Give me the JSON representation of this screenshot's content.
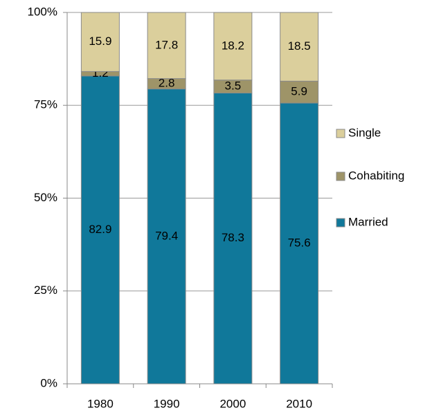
{
  "chart_data": {
    "type": "stacked_bar",
    "categories": [
      "1980",
      "1990",
      "2000",
      "2010"
    ],
    "series": [
      {
        "name": "Married",
        "color": "#10789a",
        "values": [
          82.9,
          79.4,
          78.3,
          75.6
        ]
      },
      {
        "name": "Cohabiting",
        "color": "#9e9468",
        "values": [
          1.2,
          2.8,
          3.5,
          5.9
        ]
      },
      {
        "name": "Single",
        "color": "#dbcf9c",
        "values": [
          15.9,
          17.8,
          18.2,
          18.5
        ]
      }
    ],
    "ylim": [
      0,
      100
    ],
    "yticks": [
      {
        "value": 0,
        "label": "0%"
      },
      {
        "value": 25,
        "label": "25%"
      },
      {
        "value": 50,
        "label": "50%"
      },
      {
        "value": 75,
        "label": "75%"
      },
      {
        "value": 100,
        "label": "100%"
      }
    ],
    "grid": true,
    "legend": "right"
  }
}
